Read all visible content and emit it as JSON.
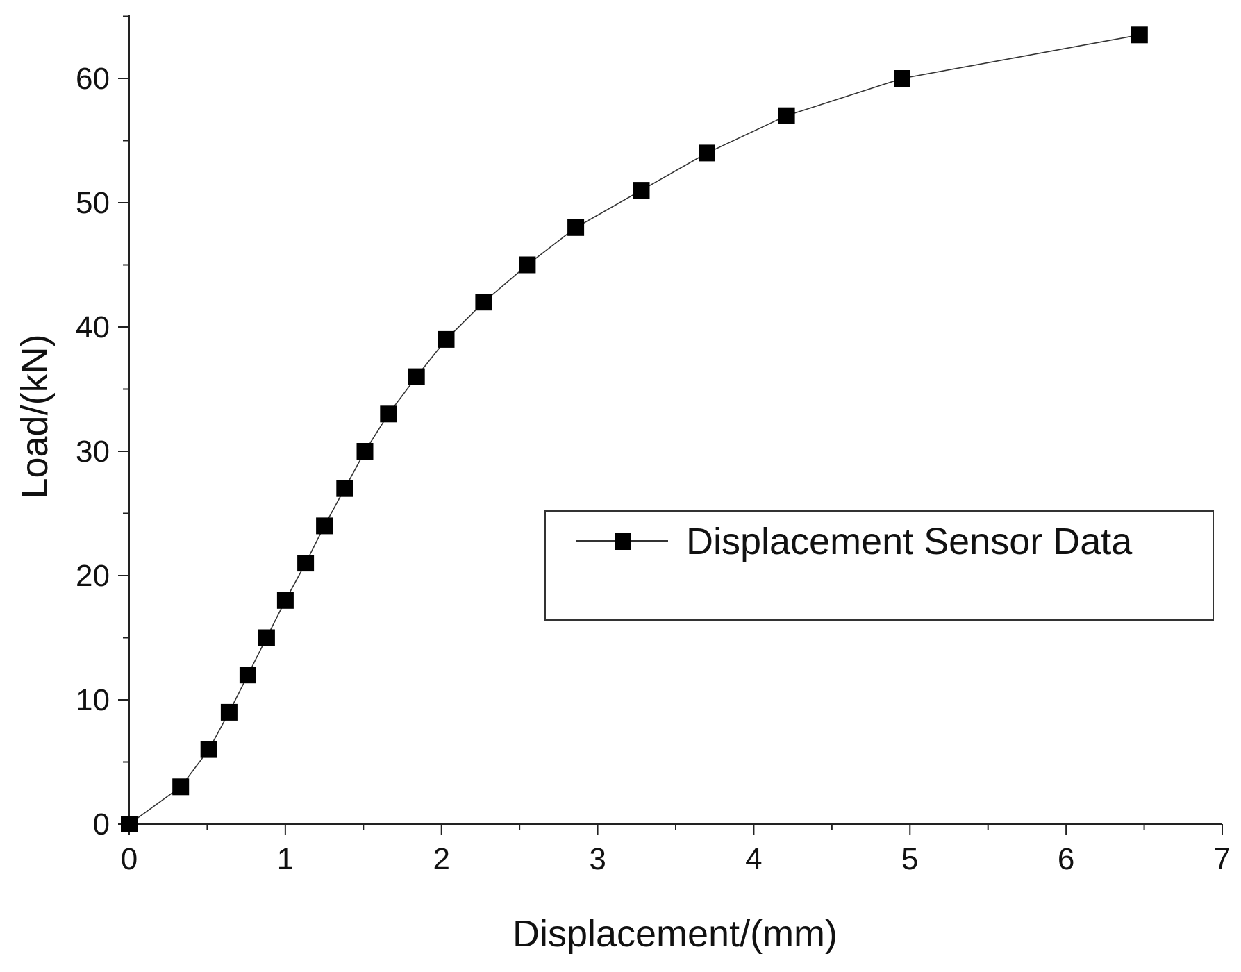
{
  "chart_data": {
    "type": "line",
    "title": "",
    "xlabel": "Displacement/(mm)",
    "ylabel": "Load/(kN)",
    "xlim": [
      0,
      7
    ],
    "ylim": [
      0,
      65
    ],
    "x_ticks": [
      "0",
      "1",
      "2",
      "3",
      "4",
      "5",
      "6",
      "7"
    ],
    "y_ticks": [
      "0",
      "10",
      "20",
      "30",
      "40",
      "50",
      "60"
    ],
    "grid": false,
    "legend_position": "right",
    "marker": "square",
    "line_color": "#333333",
    "marker_color": "#000000",
    "series": [
      {
        "name": "Displacement Sensor Data",
        "x": [
          0.0,
          0.33,
          0.51,
          0.64,
          0.76,
          0.88,
          1.0,
          1.13,
          1.25,
          1.38,
          1.51,
          1.66,
          1.84,
          2.03,
          2.27,
          2.55,
          2.86,
          3.28,
          3.7,
          4.21,
          4.95,
          6.47
        ],
        "y": [
          0,
          3,
          6,
          9,
          12,
          15,
          18,
          21,
          24,
          27,
          30,
          33,
          36,
          39,
          42,
          45,
          48,
          51,
          54,
          57,
          60,
          63.5
        ]
      }
    ]
  }
}
